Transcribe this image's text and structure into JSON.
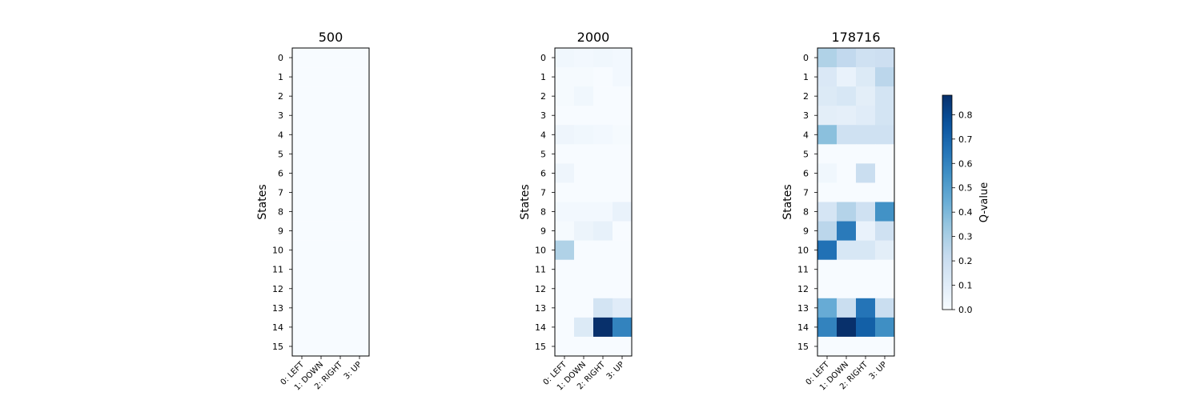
{
  "chart_data": [
    {
      "type": "heatmap",
      "title": "500",
      "ylabel": "States",
      "xlabel": "",
      "x_categories": [
        "0: LEFT",
        "1: DOWN",
        "2: RIGHT",
        "3: UP"
      ],
      "y_categories": [
        "0",
        "1",
        "2",
        "3",
        "4",
        "5",
        "6",
        "7",
        "8",
        "9",
        "10",
        "11",
        "12",
        "13",
        "14",
        "15"
      ],
      "values": [
        [
          0,
          0,
          0,
          0
        ],
        [
          0,
          0,
          0,
          0
        ],
        [
          0,
          0,
          0,
          0
        ],
        [
          0,
          0,
          0,
          0
        ],
        [
          0,
          0,
          0,
          0
        ],
        [
          0,
          0,
          0,
          0
        ],
        [
          0,
          0,
          0,
          0
        ],
        [
          0,
          0,
          0,
          0
        ],
        [
          0,
          0,
          0,
          0
        ],
        [
          0,
          0,
          0,
          0
        ],
        [
          0,
          0,
          0,
          0
        ],
        [
          0,
          0,
          0,
          0
        ],
        [
          0,
          0,
          0,
          0
        ],
        [
          0,
          0,
          0,
          0
        ],
        [
          0,
          0,
          0,
          0
        ],
        [
          0,
          0,
          0,
          0
        ]
      ]
    },
    {
      "type": "heatmap",
      "title": "2000",
      "ylabel": "States",
      "xlabel": "",
      "x_categories": [
        "0: LEFT",
        "1: DOWN",
        "2: RIGHT",
        "3: UP"
      ],
      "y_categories": [
        "0",
        "1",
        "2",
        "3",
        "4",
        "5",
        "6",
        "7",
        "8",
        "9",
        "10",
        "11",
        "12",
        "13",
        "14",
        "15"
      ],
      "values": [
        [
          0.03,
          0.02,
          0.03,
          0.02
        ],
        [
          0.01,
          0.01,
          0,
          0.02
        ],
        [
          0.01,
          0.03,
          0,
          0
        ],
        [
          0,
          0,
          0,
          0
        ],
        [
          0.04,
          0.03,
          0.02,
          0.01
        ],
        [
          0,
          0,
          0,
          0
        ],
        [
          0.04,
          0,
          0,
          0
        ],
        [
          0,
          0,
          0,
          0
        ],
        [
          0.02,
          0.02,
          0.02,
          0.06
        ],
        [
          0.01,
          0.05,
          0.07,
          0
        ],
        [
          0.28,
          0,
          0,
          0
        ],
        [
          0,
          0,
          0,
          0
        ],
        [
          0,
          0,
          0,
          0
        ],
        [
          0,
          0,
          0.16,
          0.1
        ],
        [
          0,
          0.12,
          0.88,
          0.6
        ],
        [
          0,
          0,
          0,
          0
        ]
      ]
    },
    {
      "type": "heatmap",
      "title": "178716",
      "ylabel": "States",
      "xlabel": "",
      "x_categories": [
        "0: LEFT",
        "1: DOWN",
        "2: RIGHT",
        "3: UP"
      ],
      "y_categories": [
        "0",
        "1",
        "2",
        "3",
        "4",
        "5",
        "6",
        "7",
        "8",
        "9",
        "10",
        "11",
        "12",
        "13",
        "14",
        "15"
      ],
      "values": [
        [
          0.28,
          0.23,
          0.18,
          0.19
        ],
        [
          0.13,
          0.06,
          0.12,
          0.25
        ],
        [
          0.12,
          0.14,
          0.09,
          0.16
        ],
        [
          0.09,
          0.08,
          0.1,
          0.16
        ],
        [
          0.37,
          0.18,
          0.18,
          0.18
        ],
        [
          0,
          0,
          0,
          0
        ],
        [
          0.03,
          0,
          0.2,
          0
        ],
        [
          0,
          0,
          0,
          0
        ],
        [
          0.15,
          0.27,
          0.18,
          0.55
        ],
        [
          0.25,
          0.63,
          0.06,
          0.18
        ],
        [
          0.66,
          0.14,
          0.14,
          0.09
        ],
        [
          0,
          0,
          0,
          0
        ],
        [
          0,
          0,
          0,
          0
        ],
        [
          0.45,
          0.2,
          0.65,
          0.2
        ],
        [
          0.6,
          0.88,
          0.72,
          0.56
        ],
        [
          0,
          0,
          0,
          0
        ]
      ]
    }
  ],
  "colorbar": {
    "label": "Q-value",
    "min": 0,
    "max": 0.88,
    "ticks": [
      "0.0",
      "0.1",
      "0.2",
      "0.3",
      "0.4",
      "0.5",
      "0.6",
      "0.7",
      "0.8"
    ],
    "colormap": "Blues",
    "color_low": "#f7fbff",
    "color_high": "#08306b"
  }
}
